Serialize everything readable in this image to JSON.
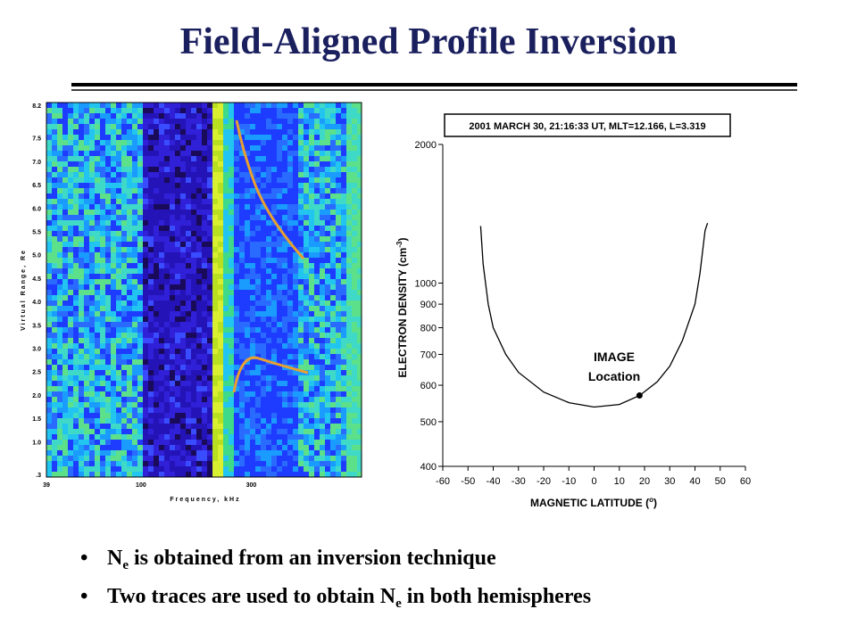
{
  "title": "Field-Aligned Profile Inversion",
  "bullets": [
    {
      "symbol": "N",
      "subscript": "e",
      "text": " is obtained from an inversion technique"
    },
    {
      "text": "Two traces are used to obtain N",
      "subscript": "e",
      "end": " in both hemispheres"
    }
  ],
  "spectrogram": {
    "ylabel": "Virtual Range, Re",
    "xlabel": "Frequency, kHz",
    "ylim": [
      0.3,
      8.2
    ],
    "yticks": [
      8.2,
      7.5,
      {
        "value": 7,
        "label": "7.0"
      },
      6.5,
      {
        "value": 6,
        "label": "6.0"
      },
      5.5,
      {
        "value": 5,
        "label": "5.0"
      },
      4.5,
      {
        "value": 4,
        "label": "4.0"
      },
      3.5,
      {
        "value": 3,
        "label": "3.0"
      },
      2.5,
      {
        "value": 2,
        "label": "2.0"
      },
      1.5,
      {
        "value": 1,
        "label": "1.0"
      },
      {
        "value": 0.3,
        "label": ".3"
      }
    ],
    "xlim": [
      39,
      900
    ],
    "xticks": [
      39,
      100,
      300
    ],
    "xscale": "log"
  },
  "chart_data": {
    "type": "line",
    "title": "2001 MARCH 30, 21:16:33 UT, MLT=12.166, L=3.319",
    "xlabel": {
      "text": "MAGNETIC LATITUDE (",
      "superscript": "o",
      "end": ")"
    },
    "ylabel": {
      "text": "ELECTRON DENSITY (cm",
      "superscript": "-3",
      "end": ")"
    },
    "x": [
      -45,
      -44,
      -42,
      -40,
      -35,
      -30,
      -20,
      -10,
      0,
      10,
      18,
      25,
      30,
      35,
      40,
      42,
      44,
      45
    ],
    "values": [
      1330,
      1100,
      900,
      800,
      700,
      640,
      580,
      550,
      538,
      545,
      570,
      610,
      660,
      750,
      900,
      1050,
      1300,
      1350
    ],
    "color": "#000000",
    "yscale": "log",
    "xlim": [
      -60,
      60
    ],
    "xticks": [
      -60,
      -50,
      -40,
      -30,
      -20,
      -10,
      0,
      10,
      20,
      30,
      40,
      50,
      60
    ],
    "ylim": [
      400,
      2000
    ],
    "yticks": [
      400,
      500,
      600,
      700,
      800,
      900,
      1000,
      2000
    ],
    "annotation": {
      "lines": [
        "IMAGE",
        "Location"
      ],
      "x": 18,
      "y": 570
    }
  }
}
